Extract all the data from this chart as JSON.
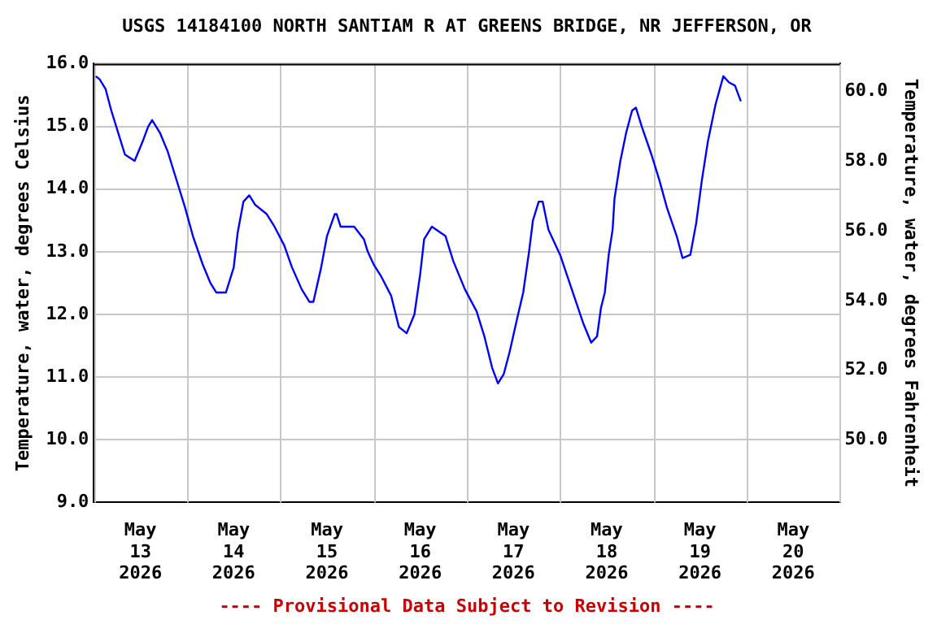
{
  "chart_data": {
    "type": "line",
    "title": "USGS 14184100 NORTH SANTIAM R AT GREENS BRIDGE, NR JEFFERSON, OR",
    "ylabel": "Temperature, water, degrees Celsius",
    "y2label": "Temperature, water, degrees Fahrenheit",
    "annotations": [
      "---- Provisional Data Subject to Revision ----"
    ],
    "x": [
      "2026-05-12T12:30",
      "2026-05-12T13:30",
      "2026-05-12T15:00",
      "2026-05-12T16:30",
      "2026-05-12T18:00",
      "2026-05-12T20:00",
      "2026-05-12T22:30",
      "2026-05-13T00:30",
      "2026-05-13T02:00",
      "2026-05-13T03:00",
      "2026-05-13T05:00",
      "2026-05-13T07:00",
      "2026-05-13T09:00",
      "2026-05-13T11:30",
      "2026-05-13T13:30",
      "2026-05-13T16:00",
      "2026-05-13T18:00",
      "2026-05-13T19:30",
      "2026-05-13T22:00",
      "2026-05-14T00:00",
      "2026-05-14T01:00",
      "2026-05-14T02:30",
      "2026-05-14T04:00",
      "2026-05-14T05:30",
      "2026-05-14T08:30",
      "2026-05-14T10:30",
      "2026-05-14T13:00",
      "2026-05-14T15:00",
      "2026-05-14T17:30",
      "2026-05-14T19:30",
      "2026-05-14T20:30",
      "2026-05-14T22:30",
      "2026-05-15T00:00",
      "2026-05-15T02:00",
      "2026-05-15T02:30",
      "2026-05-15T03:30",
      "2026-05-15T07:00",
      "2026-05-15T09:30",
      "2026-05-15T10:30",
      "2026-05-15T12:00",
      "2026-05-15T14:00",
      "2026-05-15T16:30",
      "2026-05-15T18:30",
      "2026-05-15T20:30",
      "2026-05-15T22:30",
      "2026-05-16T00:00",
      "2026-05-16T01:00",
      "2026-05-16T03:00",
      "2026-05-16T06:30",
      "2026-05-16T08:30",
      "2026-05-16T11:30",
      "2026-05-16T14:30",
      "2026-05-16T16:30",
      "2026-05-16T18:30",
      "2026-05-16T20:00",
      "2026-05-16T21:30",
      "2026-05-16T23:00",
      "2026-05-17T01:00",
      "2026-05-17T02:30",
      "2026-05-17T04:00",
      "2026-05-17T05:00",
      "2026-05-17T06:30",
      "2026-05-17T07:30",
      "2026-05-17T09:00",
      "2026-05-17T12:00",
      "2026-05-17T15:00",
      "2026-05-17T18:00",
      "2026-05-17T20:00",
      "2026-05-17T21:30",
      "2026-05-17T22:30",
      "2026-05-17T23:30",
      "2026-05-18T00:30",
      "2026-05-18T01:30",
      "2026-05-18T02:00",
      "2026-05-18T03:30",
      "2026-05-18T05:00",
      "2026-05-18T06:30",
      "2026-05-18T07:30",
      "2026-05-18T09:00",
      "2026-05-18T11:30",
      "2026-05-18T13:30",
      "2026-05-18T15:30",
      "2026-05-18T18:00",
      "2026-05-18T19:30",
      "2026-05-18T21:30",
      "2026-05-18T23:00",
      "2026-05-19T00:30",
      "2026-05-19T02:00",
      "2026-05-19T04:00",
      "2026-05-19T06:00",
      "2026-05-19T07:30",
      "2026-05-19T09:00",
      "2026-05-19T10:30"
    ],
    "series": [
      {
        "color": "#0000ff",
        "values": [
          15.8,
          15.75,
          15.6,
          15.25,
          14.95,
          14.55,
          14.45,
          14.75,
          15.0,
          15.1,
          14.9,
          14.6,
          14.2,
          13.7,
          13.25,
          12.8,
          12.5,
          12.35,
          12.35,
          12.75,
          13.3,
          13.8,
          13.9,
          13.75,
          13.6,
          13.4,
          13.1,
          12.75,
          12.4,
          12.2,
          12.2,
          12.75,
          13.25,
          13.6,
          13.6,
          13.4,
          13.4,
          13.2,
          13.0,
          12.8,
          12.6,
          12.3,
          11.8,
          11.7,
          12.0,
          12.65,
          13.2,
          13.4,
          13.25,
          12.85,
          12.4,
          12.05,
          11.65,
          11.15,
          10.9,
          11.05,
          11.4,
          11.95,
          12.35,
          13.0,
          13.5,
          13.8,
          13.8,
          13.35,
          12.95,
          12.4,
          11.85,
          11.55,
          11.65,
          12.1,
          12.35,
          12.95,
          13.35,
          13.85,
          14.45,
          14.9,
          15.25,
          15.3,
          15.0,
          14.55,
          14.15,
          13.7,
          13.25,
          12.9,
          12.95,
          13.45,
          14.15,
          14.75,
          15.35,
          15.8,
          15.7,
          15.65,
          15.4
        ]
      }
    ],
    "xlim": [
      "2026-05-12T12:00",
      "2026-05-20T12:00"
    ],
    "xticks": [
      {
        "value": "2026-05-12T12:00",
        "label": null
      },
      {
        "value": "2026-05-13",
        "label": "May\n13\n2026"
      },
      {
        "value": "2026-05-13T12:00",
        "label": null
      },
      {
        "value": "2026-05-14",
        "label": "May\n14\n2026"
      },
      {
        "value": "2026-05-14T12:00",
        "label": null
      },
      {
        "value": "2026-05-15",
        "label": "May\n15\n2026"
      },
      {
        "value": "2026-05-15T12:00",
        "label": null
      },
      {
        "value": "2026-05-16",
        "label": "May\n16\n2026"
      },
      {
        "value": "2026-05-16T12:00",
        "label": null
      },
      {
        "value": "2026-05-17",
        "label": "May\n17\n2026"
      },
      {
        "value": "2026-05-17T12:00",
        "label": null
      },
      {
        "value": "2026-05-18",
        "label": "May\n18\n2026"
      },
      {
        "value": "2026-05-18T12:00",
        "label": null
      },
      {
        "value": "2026-05-19",
        "label": "May\n19\n2026"
      },
      {
        "value": "2026-05-19T12:00",
        "label": null
      },
      {
        "value": "2026-05-20",
        "label": "May\n20\n2026"
      },
      {
        "value": "2026-05-20T12:00",
        "label": null
      }
    ],
    "ylim": [
      9,
      16
    ],
    "yticks": [
      {
        "value": 9,
        "label": "9.0"
      },
      {
        "value": 10,
        "label": "10.0"
      },
      {
        "value": 11,
        "label": "11.0"
      },
      {
        "value": 12,
        "label": "12.0"
      },
      {
        "value": 13,
        "label": "13.0"
      },
      {
        "value": 14,
        "label": "14.0"
      },
      {
        "value": 15,
        "label": "15.0"
      },
      {
        "value": 16,
        "label": "16.0"
      }
    ],
    "y2lim": [
      48.2,
      60.8
    ],
    "y2ticks": [
      {
        "value": 50,
        "label": "50.0"
      },
      {
        "value": 52,
        "label": "52.0"
      },
      {
        "value": 54,
        "label": "54.0"
      },
      {
        "value": 56,
        "label": "56.0"
      },
      {
        "value": 58,
        "label": "58.0"
      },
      {
        "value": 60,
        "label": "60.0"
      }
    ],
    "grid": true,
    "legend": false,
    "marker": "none",
    "line_style": "solid"
  }
}
